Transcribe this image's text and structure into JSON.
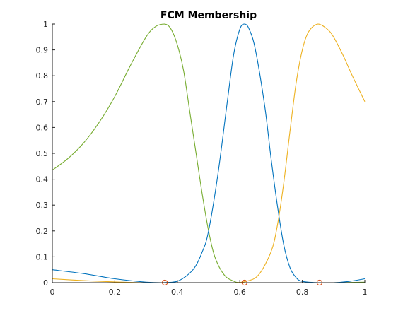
{
  "chart_data": {
    "type": "line",
    "title": "FCM Membership",
    "xlabel": "",
    "ylabel": "",
    "xlim": [
      0,
      1
    ],
    "ylim": [
      0,
      1
    ],
    "x_ticks": [
      0,
      0.2,
      0.4,
      0.6,
      0.8,
      1
    ],
    "x_tick_labels": [
      "0",
      "0.2",
      "0.4",
      "0.6",
      "0.8",
      "1"
    ],
    "y_ticks": [
      0,
      0.1,
      0.2,
      0.3,
      0.4,
      0.5,
      0.6,
      0.7,
      0.8,
      0.9,
      1
    ],
    "y_tick_labels": [
      "0",
      "0.1",
      "0.2",
      "0.3",
      "0.4",
      "0.5",
      "0.6",
      "0.7",
      "0.8",
      "0.9",
      "1"
    ],
    "grid": false,
    "legend": "none",
    "series": [
      {
        "color": "#77AC30",
        "x": [
          0,
          0.05,
          0.1,
          0.15,
          0.2,
          0.25,
          0.3,
          0.33,
          0.36,
          0.38,
          0.4,
          0.42,
          0.44,
          0.46,
          0.48,
          0.5,
          0.52,
          0.55,
          0.58,
          0.6,
          0.65,
          0.7,
          0.8,
          0.9,
          1
        ],
        "y": [
          0.435,
          0.48,
          0.54,
          0.62,
          0.72,
          0.84,
          0.95,
          0.99,
          1.0,
          0.98,
          0.92,
          0.82,
          0.66,
          0.5,
          0.34,
          0.2,
          0.1,
          0.03,
          0.006,
          0.0,
          0.0,
          0.0,
          0.0,
          0.0,
          0.002
        ]
      },
      {
        "color": "#0072BD",
        "x": [
          0,
          0.1,
          0.2,
          0.3,
          0.35,
          0.4,
          0.45,
          0.48,
          0.5,
          0.53,
          0.56,
          0.58,
          0.6,
          0.615,
          0.63,
          0.65,
          0.68,
          0.7,
          0.72,
          0.74,
          0.76,
          0.78,
          0.8,
          0.85,
          0.9,
          0.95,
          1
        ],
        "y": [
          0.05,
          0.035,
          0.015,
          0.002,
          0.0,
          0.005,
          0.05,
          0.12,
          0.2,
          0.42,
          0.7,
          0.88,
          0.98,
          1.0,
          0.98,
          0.9,
          0.68,
          0.48,
          0.3,
          0.15,
          0.06,
          0.02,
          0.005,
          0.0,
          0.0,
          0.005,
          0.015
        ]
      },
      {
        "color": "#EDB120",
        "x": [
          0,
          0.1,
          0.2,
          0.3,
          0.4,
          0.5,
          0.58,
          0.62,
          0.66,
          0.7,
          0.72,
          0.74,
          0.76,
          0.78,
          0.8,
          0.82,
          0.85,
          0.88,
          0.9,
          0.93,
          0.96,
          1
        ],
        "y": [
          0.015,
          0.008,
          0.003,
          0.0,
          0.0,
          0.0,
          0.0,
          0.005,
          0.03,
          0.12,
          0.22,
          0.38,
          0.58,
          0.77,
          0.9,
          0.97,
          1.0,
          0.98,
          0.95,
          0.88,
          0.8,
          0.7
        ]
      }
    ],
    "markers": {
      "color": "#D95319",
      "shape": "circle",
      "x": [
        0.36,
        0.615,
        0.855
      ],
      "y": [
        0,
        0,
        0
      ]
    }
  }
}
